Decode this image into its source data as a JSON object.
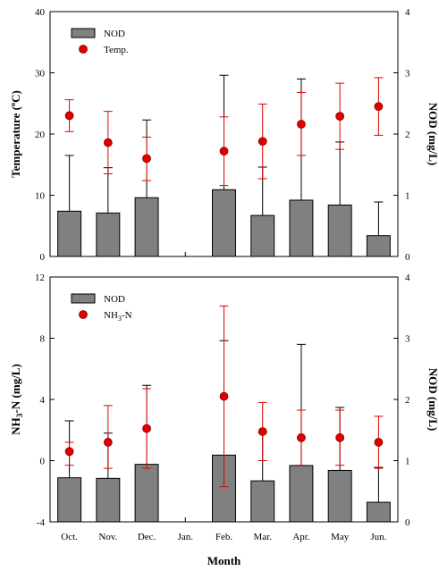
{
  "chart_data": [
    {
      "type": "bar",
      "categories": [
        "Oct.",
        "Nov.",
        "Dec.",
        "Jan.",
        "Feb.",
        "Mar.",
        "Apr.",
        "May",
        "Jun."
      ],
      "series": [
        {
          "name": "NOD",
          "kind": "bar",
          "axis": "right",
          "color": "#808080",
          "values": [
            0.74,
            0.71,
            0.96,
            null,
            1.09,
            0.67,
            0.92,
            0.84,
            0.34
          ],
          "error_upper": [
            1.65,
            1.45,
            2.23,
            null,
            2.96,
            1.46,
            2.9,
            1.87,
            0.89
          ]
        },
        {
          "name": "Temp.",
          "kind": "scatter",
          "axis": "left",
          "color": "#e00000",
          "values": [
            23.0,
            18.6,
            16.0,
            null,
            17.2,
            18.8,
            21.6,
            22.9,
            24.5
          ],
          "error_low": [
            20.4,
            13.5,
            12.4,
            null,
            11.6,
            12.7,
            16.5,
            17.5,
            19.8
          ],
          "error_high": [
            25.6,
            23.7,
            19.5,
            null,
            22.8,
            24.9,
            26.8,
            28.3,
            29.2
          ]
        }
      ],
      "ylabel_left": "Temperature (°C)",
      "ylabel_right": "NOD (mg/L)",
      "ylim_left": [
        0,
        40
      ],
      "ylim_right": [
        0,
        4
      ],
      "yticks_left": [
        0,
        10,
        20,
        30,
        40
      ],
      "yticks_right": [
        0,
        1,
        2,
        3,
        4
      ],
      "legend": [
        "NOD",
        "Temp."
      ],
      "legend_position": "top-left"
    },
    {
      "type": "bar",
      "categories": [
        "Oct.",
        "Nov.",
        "Dec.",
        "Jan.",
        "Feb.",
        "Mar.",
        "Apr.",
        "May",
        "Jun."
      ],
      "series": [
        {
          "name": "NOD",
          "kind": "bar",
          "axis": "right",
          "color": "#808080",
          "values": [
            0.72,
            0.71,
            0.94,
            null,
            1.09,
            0.67,
            0.92,
            0.84,
            0.32
          ],
          "error_upper": [
            1.65,
            1.45,
            2.23,
            null,
            2.96,
            1.46,
            2.9,
            1.87,
            0.89
          ]
        },
        {
          "name": "NH3-N",
          "kind": "scatter",
          "axis": "left",
          "color": "#e00000",
          "values": [
            0.6,
            1.2,
            2.1,
            null,
            4.2,
            1.9,
            1.5,
            1.5,
            1.2
          ],
          "error_low": [
            -0.3,
            -0.5,
            -0.5,
            null,
            -1.7,
            0.0,
            -0.3,
            -0.3,
            -0.5
          ],
          "error_high": [
            1.2,
            3.6,
            4.7,
            null,
            10.1,
            3.8,
            3.3,
            3.3,
            2.9
          ]
        }
      ],
      "xlabel": "Month",
      "ylabel_left": "NH3-N (mg/L)",
      "ylabel_right": "NOD (mg/L)",
      "ylim_left": [
        -4,
        12
      ],
      "ylim_right": [
        0,
        4
      ],
      "yticks_left": [
        -4,
        0,
        4,
        8,
        12
      ],
      "yticks_right": [
        0,
        1,
        2,
        3,
        4
      ],
      "legend": [
        "NOD",
        "NH3-N"
      ],
      "legend_position": "top-left"
    }
  ]
}
